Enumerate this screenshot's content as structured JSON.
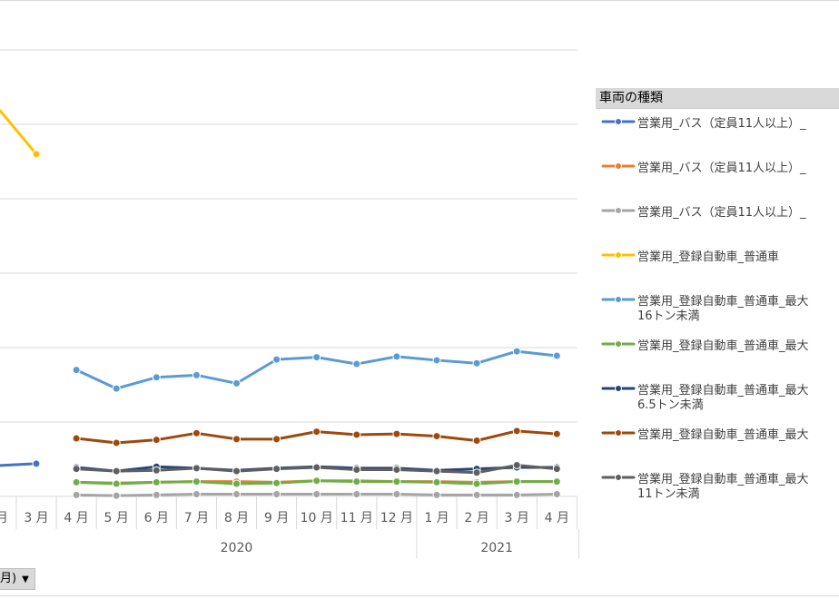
{
  "chart_data": {
    "type": "line",
    "categories": [
      "3 月",
      "4 月",
      "5 月",
      "6 月",
      "7 月",
      "8 月",
      "9 月",
      "10 月",
      "11 月",
      "12 月",
      "1 月",
      "2 月",
      "3 月",
      "4 月"
    ],
    "partial_left_label": "月",
    "years": [
      {
        "label": "2020",
        "from": 1,
        "to": 9
      },
      {
        "label": "2021",
        "from": 10,
        "to": 13
      }
    ],
    "legend_title": "車両の種類",
    "series": [
      {
        "name": "営業用_バス（定員11人以上）_",
        "color": "#4472c4",
        "extra_label": "",
        "values": [
          44,
          null,
          null,
          null,
          null,
          null,
          null,
          null,
          null,
          null,
          null,
          null,
          null,
          null
        ]
      },
      {
        "name": "営業用_バス（定員11人以上）_",
        "color": "#ed7d31",
        "extra_label": "",
        "values": [
          null,
          19,
          18,
          19,
          20,
          20,
          19,
          21,
          21,
          20,
          20,
          19,
          20,
          20
        ]
      },
      {
        "name": "営業用_バス（定員11人以上）_",
        "color": "#a5a5a5",
        "extra_label": "",
        "values": [
          null,
          2,
          1,
          2,
          3,
          3,
          3,
          3,
          3,
          3,
          2,
          2,
          2,
          3
        ]
      },
      {
        "name": "営業用_登録自動車_普通車",
        "color": "#ffc000",
        "extra_label": "",
        "values": [
          460,
          null,
          null,
          null,
          null,
          null,
          null,
          null,
          null,
          null,
          null,
          null,
          null,
          null
        ]
      },
      {
        "name": "営業用_登録自動車_普通車_最大",
        "color": "#5b9bd5",
        "extra_label": "16トン未満",
        "values": [
          null,
          170,
          145,
          160,
          163,
          152,
          184,
          187,
          178,
          188,
          183,
          179,
          195,
          189
        ]
      },
      {
        "name": "営業用_登録自動車_普通車_最大",
        "color": "#70ad47",
        "extra_label": "",
        "values": [
          null,
          19,
          17,
          19,
          20,
          17,
          18,
          21,
          20,
          20,
          19,
          17,
          20,
          20
        ]
      },
      {
        "name": "営業用_登録自動車_普通車_最大",
        "color": "#264478",
        "extra_label": "6.5トン未満",
        "values": [
          null,
          39,
          34,
          40,
          38,
          35,
          38,
          40,
          38,
          38,
          35,
          37,
          39,
          39
        ]
      },
      {
        "name": "営業用_登録自動車_普通車_最大",
        "color": "#9e480e",
        "extra_label": "",
        "values": [
          null,
          78,
          72,
          76,
          85,
          77,
          77,
          87,
          83,
          84,
          81,
          75,
          88,
          84
        ]
      },
      {
        "name": "営業用_登録自動車_普通車_最大",
        "color": "#5f5f5f",
        "extra_label": "11トン未満",
        "values": [
          null,
          37,
          34,
          35,
          38,
          34,
          37,
          39,
          36,
          36,
          34,
          32,
          42,
          37
        ]
      }
    ]
  },
  "filter": {
    "label": "月)"
  }
}
